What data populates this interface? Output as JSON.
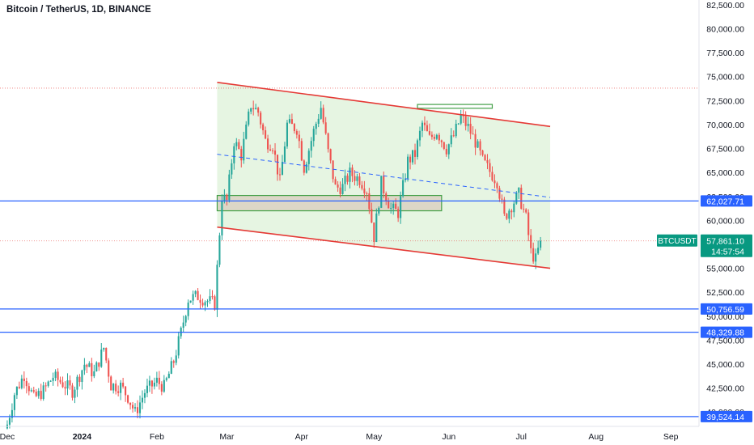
{
  "title": "Bitcoin / TetherUS, 1D, BINANCE",
  "colors": {
    "up": "#26a69a",
    "down": "#ef5350",
    "channel_line": "#e53935",
    "channel_fill": "#e3f4df",
    "support": "#2962ff",
    "box_fill": "#d9d0c0",
    "box_border": "#43a047",
    "last_price": "#089981"
  },
  "chart_data": {
    "type": "candlestick",
    "ylim": [
      38500,
      83000
    ],
    "y_ticks": [
      {
        "value": 82500,
        "label": "82,500.00"
      },
      {
        "value": 80000,
        "label": "80,000.00"
      },
      {
        "value": 77500,
        "label": "77,500.00"
      },
      {
        "value": 75000,
        "label": "75,000.00"
      },
      {
        "value": 72500,
        "label": "72,500.00"
      },
      {
        "value": 70000,
        "label": "70,000.00"
      },
      {
        "value": 67500,
        "label": "67,500.00"
      },
      {
        "value": 65000,
        "label": "65,000.00"
      },
      {
        "value": 62500,
        "label": "62,500.00"
      },
      {
        "value": 60000,
        "label": "60,000.00"
      },
      {
        "value": 57500,
        "label": "57,500.00"
      },
      {
        "value": 55000,
        "label": "55,000.00"
      },
      {
        "value": 52500,
        "label": "52,500.00"
      },
      {
        "value": 50000,
        "label": "50,000.00"
      },
      {
        "value": 47500,
        "label": "47,500.00"
      },
      {
        "value": 45000,
        "label": "45,000.00"
      },
      {
        "value": 42500,
        "label": "42,500.00"
      },
      {
        "value": 40000,
        "label": "40,000.00"
      }
    ],
    "x_range": [
      "2023-11-28",
      "2024-09-12"
    ],
    "x_ticks": [
      {
        "date": "2023-12-01",
        "label": "Dec",
        "bold": false
      },
      {
        "date": "2024-01-01",
        "label": "2024",
        "bold": true
      },
      {
        "date": "2024-02-01",
        "label": "Feb",
        "bold": false
      },
      {
        "date": "2024-03-01",
        "label": "Mar",
        "bold": false
      },
      {
        "date": "2024-04-01",
        "label": "Apr",
        "bold": false
      },
      {
        "date": "2024-05-01",
        "label": "May",
        "bold": false
      },
      {
        "date": "2024-06-01",
        "label": "Jun",
        "bold": false
      },
      {
        "date": "2024-07-01",
        "label": "Jul",
        "bold": false
      },
      {
        "date": "2024-08-01",
        "label": "Aug",
        "bold": false
      },
      {
        "date": "2024-09-01",
        "label": "Sep",
        "bold": false
      }
    ],
    "weekly_closes": [
      {
        "date": "2023-12-01",
        "close": 38700
      },
      {
        "date": "2023-12-04",
        "close": 41900
      },
      {
        "date": "2023-12-08",
        "close": 43900
      },
      {
        "date": "2023-12-12",
        "close": 41400
      },
      {
        "date": "2023-12-16",
        "close": 42200
      },
      {
        "date": "2023-12-20",
        "close": 43700
      },
      {
        "date": "2023-12-24",
        "close": 43000
      },
      {
        "date": "2023-12-28",
        "close": 42200
      },
      {
        "date": "2024-01-02",
        "close": 45000
      },
      {
        "date": "2024-01-06",
        "close": 44000
      },
      {
        "date": "2024-01-10",
        "close": 46700
      },
      {
        "date": "2024-01-13",
        "close": 42800
      },
      {
        "date": "2024-01-17",
        "close": 42700
      },
      {
        "date": "2024-01-20",
        "close": 41600
      },
      {
        "date": "2024-01-23",
        "close": 39900
      },
      {
        "date": "2024-01-27",
        "close": 42100
      },
      {
        "date": "2024-02-01",
        "close": 43200
      },
      {
        "date": "2024-02-04",
        "close": 42600
      },
      {
        "date": "2024-02-08",
        "close": 45300
      },
      {
        "date": "2024-02-11",
        "close": 48300
      },
      {
        "date": "2024-02-14",
        "close": 51800
      },
      {
        "date": "2024-02-18",
        "close": 52100
      },
      {
        "date": "2024-02-21",
        "close": 51700
      },
      {
        "date": "2024-02-25",
        "close": 51300
      },
      {
        "date": "2024-02-28",
        "close": 62500
      },
      {
        "date": "2024-03-01",
        "close": 62000
      },
      {
        "date": "2024-03-04",
        "close": 68300
      },
      {
        "date": "2024-03-07",
        "close": 66800
      },
      {
        "date": "2024-03-11",
        "close": 72100
      },
      {
        "date": "2024-03-14",
        "close": 71300
      },
      {
        "date": "2024-03-17",
        "close": 68300
      },
      {
        "date": "2024-03-20",
        "close": 67900
      },
      {
        "date": "2024-03-23",
        "close": 64000
      },
      {
        "date": "2024-03-26",
        "close": 70000
      },
      {
        "date": "2024-03-30",
        "close": 69600
      },
      {
        "date": "2024-04-02",
        "close": 65500
      },
      {
        "date": "2024-04-06",
        "close": 69300
      },
      {
        "date": "2024-04-09",
        "close": 71800
      },
      {
        "date": "2024-04-12",
        "close": 67100
      },
      {
        "date": "2024-04-15",
        "close": 63400
      },
      {
        "date": "2024-04-18",
        "close": 63500
      },
      {
        "date": "2024-04-21",
        "close": 64900
      },
      {
        "date": "2024-04-25",
        "close": 64300
      },
      {
        "date": "2024-04-28",
        "close": 63200
      },
      {
        "date": "2024-05-01",
        "close": 58300
      },
      {
        "date": "2024-05-04",
        "close": 63900
      },
      {
        "date": "2024-05-08",
        "close": 61200
      },
      {
        "date": "2024-05-11",
        "close": 60800
      },
      {
        "date": "2024-05-15",
        "close": 66200
      },
      {
        "date": "2024-05-18",
        "close": 66900
      },
      {
        "date": "2024-05-21",
        "close": 70100
      },
      {
        "date": "2024-05-24",
        "close": 68500
      },
      {
        "date": "2024-05-27",
        "close": 69300
      },
      {
        "date": "2024-05-31",
        "close": 67500
      },
      {
        "date": "2024-06-03",
        "close": 68800
      },
      {
        "date": "2024-06-06",
        "close": 70800
      },
      {
        "date": "2024-06-09",
        "close": 69700
      },
      {
        "date": "2024-06-12",
        "close": 68200
      },
      {
        "date": "2024-06-15",
        "close": 66200
      },
      {
        "date": "2024-06-18",
        "close": 65100
      },
      {
        "date": "2024-06-21",
        "close": 64100
      },
      {
        "date": "2024-06-24",
        "close": 60300
      },
      {
        "date": "2024-06-27",
        "close": 61600
      },
      {
        "date": "2024-06-30",
        "close": 62700
      },
      {
        "date": "2024-07-03",
        "close": 60200
      },
      {
        "date": "2024-07-05",
        "close": 56700
      },
      {
        "date": "2024-07-07",
        "close": 55900
      },
      {
        "date": "2024-07-09",
        "close": 57861
      }
    ],
    "channel": {
      "upper": [
        {
          "date": "2024-02-26",
          "price": 74400
        },
        {
          "date": "2024-07-13",
          "price": 69800
        }
      ],
      "lower": [
        {
          "date": "2024-02-26",
          "price": 59300
        },
        {
          "date": "2024-07-13",
          "price": 55000
        }
      ],
      "mid": [
        {
          "date": "2024-02-26",
          "price": 66900
        },
        {
          "date": "2024-07-13",
          "price": 62400
        }
      ]
    },
    "zones": [
      {
        "from": "2024-02-26",
        "to": "2024-05-29",
        "low": 61000,
        "high": 62600
      },
      {
        "from": "2024-05-19",
        "to": "2024-06-19",
        "low": 71700,
        "high": 72100
      }
    ],
    "horizontal_levels": [
      {
        "price": 62027.71,
        "label": "62,027.71"
      },
      {
        "price": 50756.59,
        "label": "50,756.59"
      },
      {
        "price": 48329.88,
        "label": "48,329.88"
      },
      {
        "price": 39524.14,
        "label": "39,524.14"
      }
    ],
    "dotted_levels": [
      73800,
      57861
    ],
    "last_price": {
      "symbol": "BTCUSDT",
      "price": 57861.1,
      "label": "57,861.10",
      "countdown": "14:57:54"
    }
  }
}
